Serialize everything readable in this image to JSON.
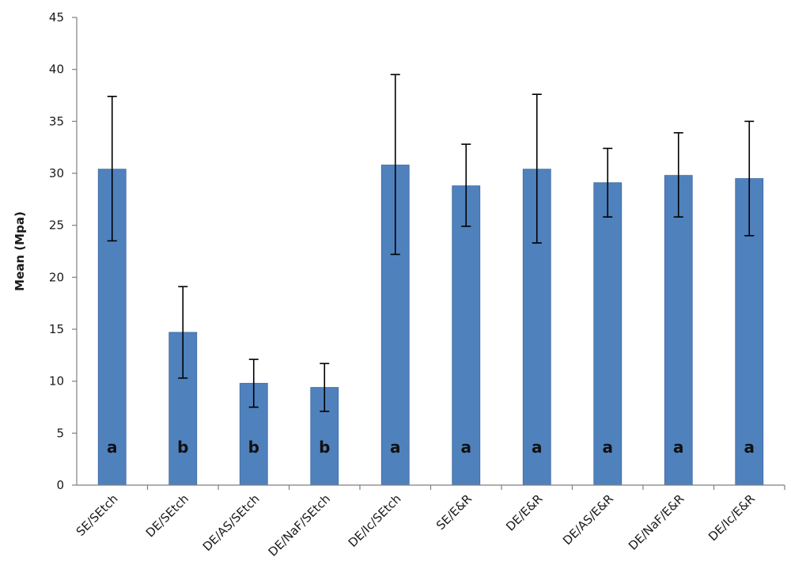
{
  "chart_data": {
    "type": "bar",
    "title": "",
    "xlabel": "",
    "ylabel": "Mean  (Mpa)",
    "ylim": [
      0,
      45
    ],
    "yticks": [
      0,
      5,
      10,
      15,
      20,
      25,
      30,
      35,
      40,
      45
    ],
    "grid": false,
    "legend": "none",
    "bar_color": "#4f81bd",
    "categories": [
      "SE/SEtch",
      "DE/SEtch",
      "DE/AS/SEtch",
      "DE/NaF/SEtch",
      "DE/Ic/SEtch",
      "SE/E&R",
      "DE/E&R",
      "DE/AS/E&R",
      "DE/NaF/E&R",
      "DE/Ic/E&R"
    ],
    "values": [
      30.4,
      14.7,
      9.8,
      9.4,
      30.8,
      28.8,
      30.4,
      29.1,
      29.8,
      29.5
    ],
    "error_low": [
      23.5,
      10.3,
      7.5,
      7.1,
      22.2,
      24.9,
      23.3,
      25.8,
      25.8,
      24.0
    ],
    "error_high": [
      37.4,
      19.1,
      12.1,
      11.7,
      39.5,
      32.8,
      37.6,
      32.4,
      33.9,
      35.0
    ],
    "group_letters": [
      "a",
      "b",
      "b",
      "b",
      "a",
      "a",
      "a",
      "a",
      "a",
      "a"
    ]
  }
}
